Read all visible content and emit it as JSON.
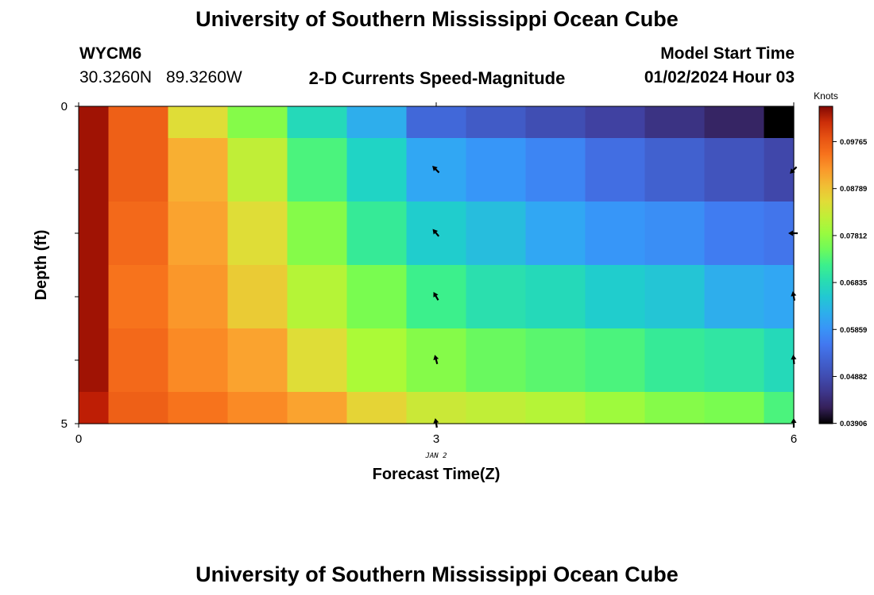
{
  "header": {
    "title": "University of Southern Mississippi Ocean Cube",
    "station_id": "WYCM6",
    "latitude": "30.3260N",
    "longitude": "89.3260W",
    "subtitle": "2-D Currents Speed-Magnitude",
    "model_start_label": "Model Start Time",
    "model_start_value": "01/02/2024 Hour 03"
  },
  "footer": {
    "title": "University of Southern Mississippi Ocean Cube"
  },
  "chart_data": {
    "type": "heatmap",
    "title": "2-D Currents Speed-Magnitude",
    "xlabel": "Forecast Time(Z)",
    "ylabel": "Depth (ft)",
    "x_ticks": [
      "0",
      "3",
      "6"
    ],
    "x_date_label": "JAN 2",
    "y_ticks": [
      "0",
      "5"
    ],
    "xlim": [
      0,
      6
    ],
    "ylim": [
      0,
      5
    ],
    "colorbar": {
      "unit_label": "Knots",
      "min": 0.039,
      "max": 0.105,
      "tick_labels": [
        "0.09765",
        "0.08789",
        "0.07812",
        "0.06835",
        "0.05859",
        "0.04882",
        "0.03906"
      ],
      "tick_values": [
        0.09765,
        0.08789,
        0.07812,
        0.06835,
        0.05859,
        0.04882,
        0.03906
      ]
    },
    "time_edges": [
      0,
      0.25,
      0.75,
      1.25,
      1.75,
      2.25,
      2.75,
      3.25,
      3.75,
      4.25,
      4.75,
      5.25,
      5.75,
      6
    ],
    "depth_edges": [
      0,
      0.5,
      1.5,
      2.5,
      3.5,
      4.5,
      5
    ],
    "values": [
      [
        0.104,
        0.097,
        0.085,
        0.077,
        0.068,
        0.062,
        0.053,
        0.051,
        0.049,
        0.047,
        0.045,
        0.043,
        0.038
      ],
      [
        0.104,
        0.097,
        0.09,
        0.082,
        0.073,
        0.067,
        0.061,
        0.059,
        0.057,
        0.054,
        0.052,
        0.05,
        0.048
      ],
      [
        0.104,
        0.096,
        0.091,
        0.085,
        0.077,
        0.071,
        0.066,
        0.064,
        0.061,
        0.059,
        0.058,
        0.056,
        0.055
      ],
      [
        0.104,
        0.095,
        0.092,
        0.087,
        0.081,
        0.076,
        0.072,
        0.069,
        0.068,
        0.066,
        0.065,
        0.062,
        0.061
      ],
      [
        0.104,
        0.096,
        0.093,
        0.091,
        0.085,
        0.08,
        0.077,
        0.075,
        0.074,
        0.073,
        0.071,
        0.07,
        0.068
      ],
      [
        0.103,
        0.097,
        0.095,
        0.093,
        0.091,
        0.086,
        0.083,
        0.082,
        0.081,
        0.079,
        0.077,
        0.076,
        0.073
      ]
    ],
    "vectors": [
      {
        "time": 3,
        "depth": 1,
        "direction_deg": 315
      },
      {
        "time": 3,
        "depth": 2,
        "direction_deg": 320
      },
      {
        "time": 3,
        "depth": 3,
        "direction_deg": 330
      },
      {
        "time": 3,
        "depth": 4,
        "direction_deg": 345
      },
      {
        "time": 3,
        "depth": 5,
        "direction_deg": 350
      },
      {
        "time": 6,
        "depth": 1,
        "direction_deg": 225
      },
      {
        "time": 6,
        "depth": 2,
        "direction_deg": 270
      },
      {
        "time": 6,
        "depth": 3,
        "direction_deg": 350
      },
      {
        "time": 6,
        "depth": 4,
        "direction_deg": 355
      },
      {
        "time": 6,
        "depth": 5,
        "direction_deg": 0
      }
    ]
  }
}
